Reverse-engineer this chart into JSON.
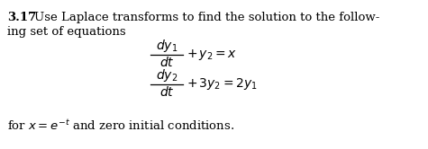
{
  "background_color": "#ffffff",
  "bold_number": "3.17",
  "intro_line1": "Use Laplace transforms to find the solution to the follow-",
  "intro_line2": "ing set of equations",
  "footer_plain1": "for ",
  "footer_italic": "x",
  "footer_plain2": " = ",
  "footer_exp": "e",
  "footer_sup": "−t",
  "footer_plain3": " and zero initial conditions.",
  "fs_main": 9.5,
  "fs_bold": 9.5,
  "fs_math": 10.0
}
